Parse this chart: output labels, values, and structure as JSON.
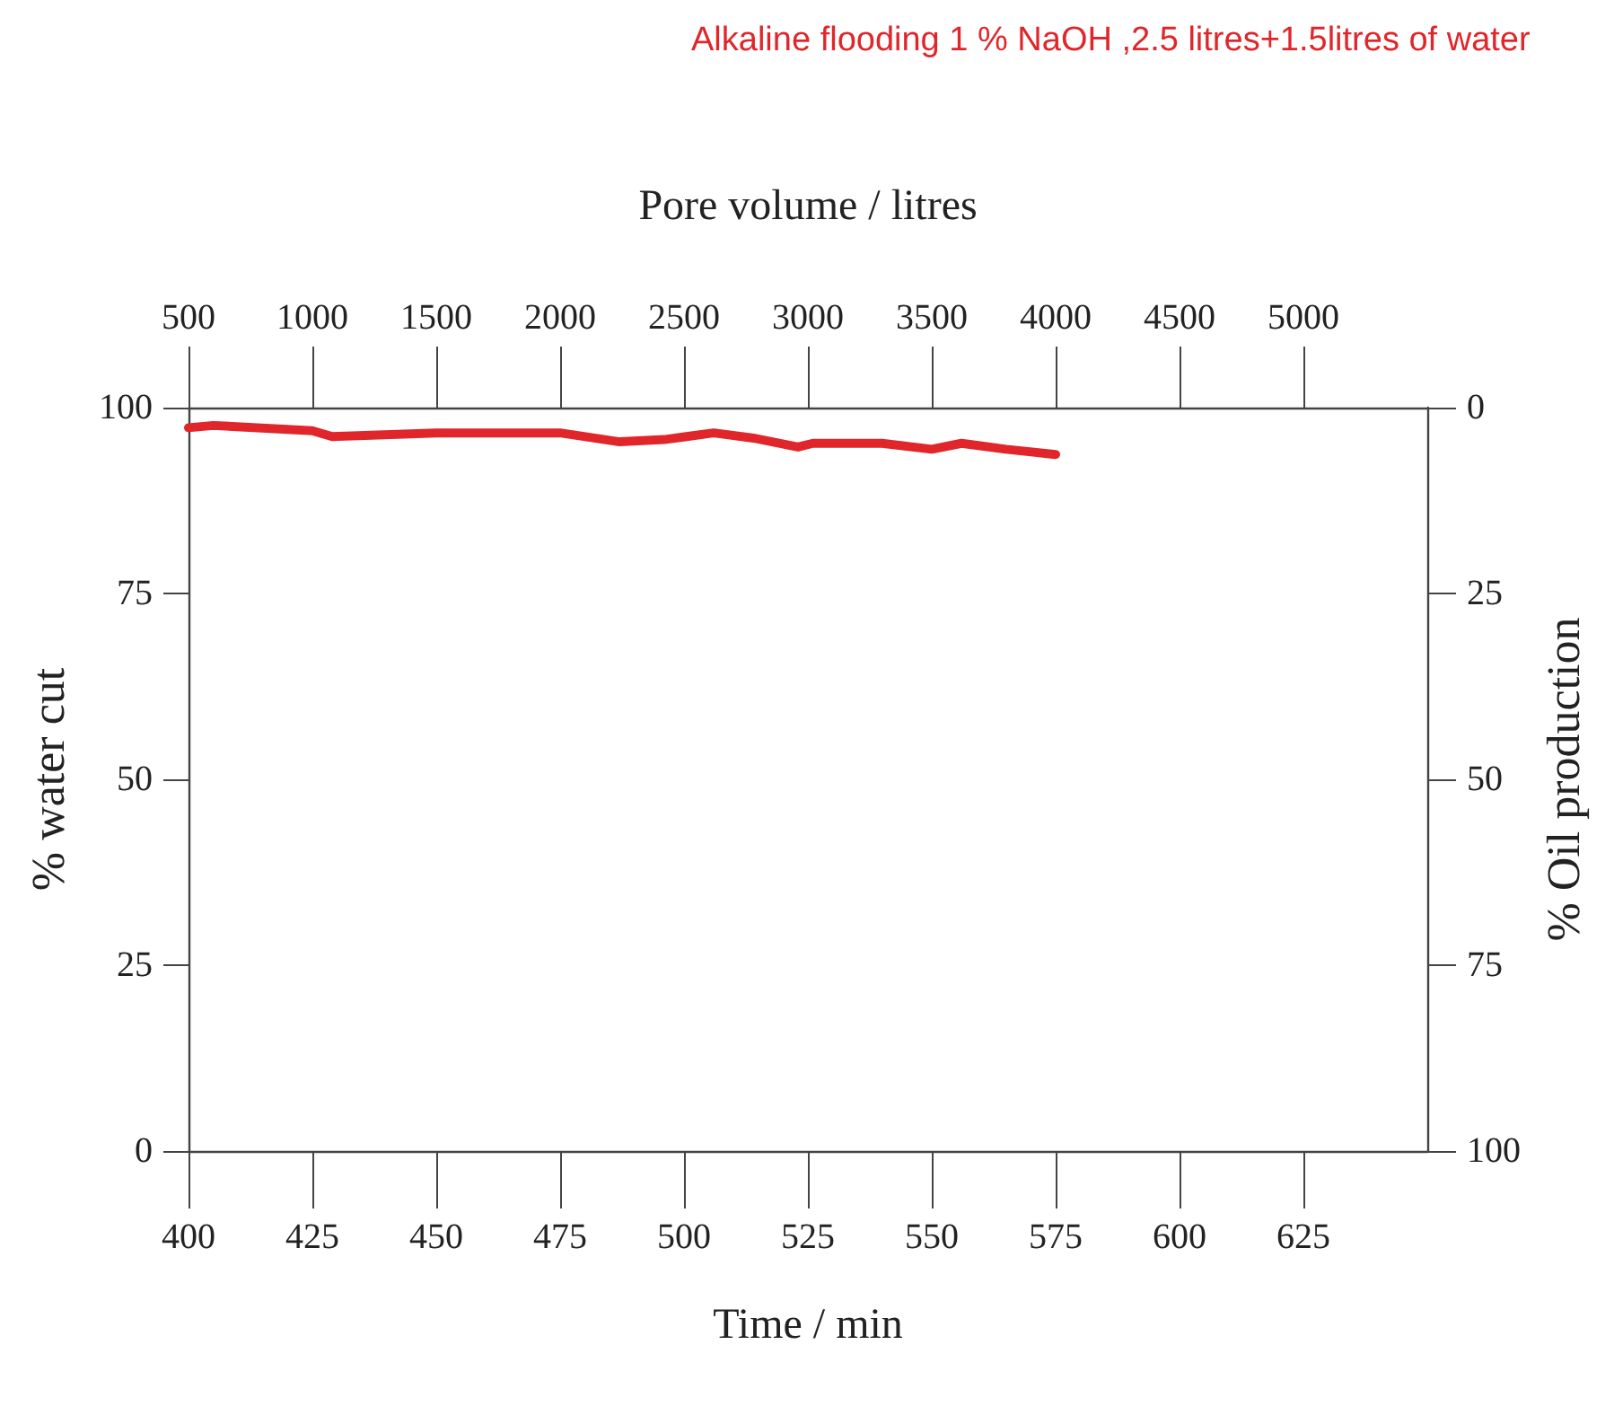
{
  "chart_data": {
    "type": "line",
    "title": "Alkaline flooding 1 % NaOH ,2.5 litres+1.5litres of water",
    "xlabel": "Time / min",
    "ylabel": "% water cut",
    "y2label": "% Oil production",
    "x2label": "Pore volume / litres",
    "x": [
      400,
      405,
      425,
      429,
      450,
      475,
      487,
      496,
      506,
      514,
      523,
      526,
      540,
      550,
      556,
      565,
      575
    ],
    "series": [
      {
        "color": "#e0262b",
        "values": [
          97.3,
          97.6,
          96.9,
          96.1,
          96.6,
          96.6,
          95.4,
          95.7,
          96.6,
          95.9,
          94.7,
          95.2,
          95.2,
          94.4,
          95.2,
          94.4,
          93.7
        ]
      }
    ],
    "xlim": [
      400,
      650
    ],
    "xticks": [
      400,
      425,
      450,
      475,
      500,
      525,
      550,
      575,
      600,
      625
    ],
    "x2lim": [
      500,
      5500
    ],
    "x2ticks": [
      500,
      1000,
      1500,
      2000,
      2500,
      3000,
      3500,
      4000,
      4500,
      5000
    ],
    "ylim": [
      0,
      100
    ],
    "yticks": [
      0,
      25,
      50,
      75,
      100
    ],
    "y2lim": [
      100,
      0
    ],
    "y2ticks": [
      0,
      25,
      50,
      75,
      100
    ],
    "grid": false,
    "marker": "none",
    "line_style": "solid"
  }
}
